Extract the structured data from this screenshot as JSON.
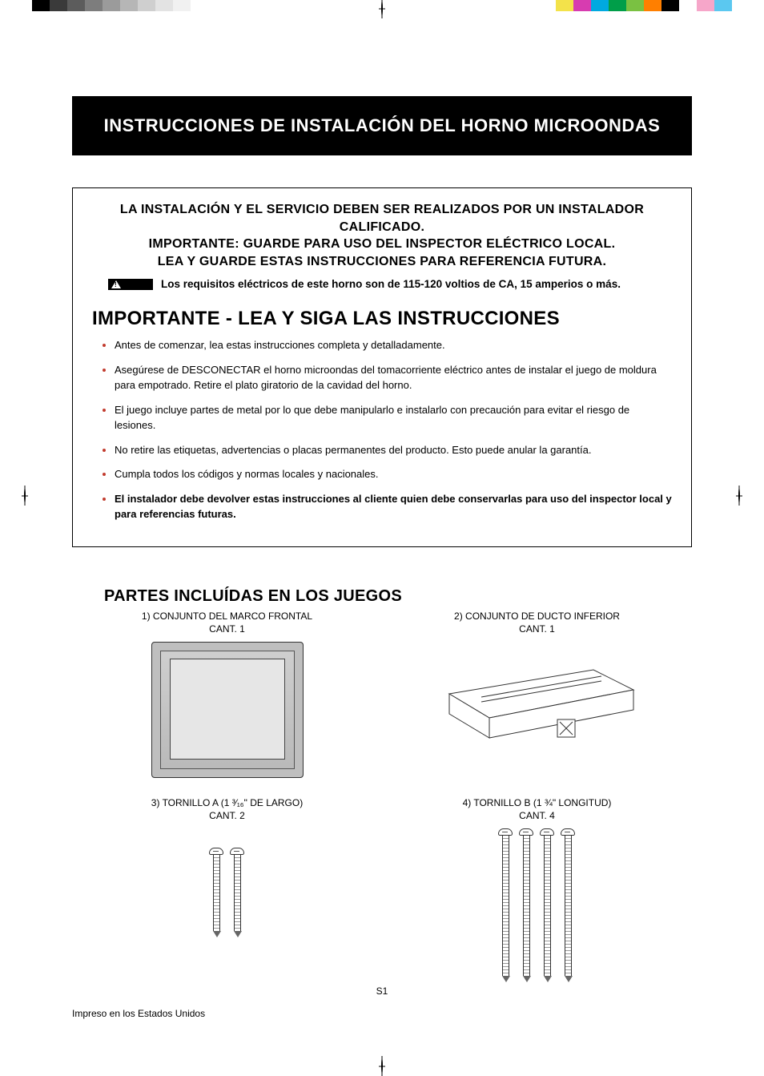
{
  "printerBar": {
    "leftColors": [
      "#000000",
      "#3a3a3a",
      "#5c5c5c",
      "#7d7d7d",
      "#9b9b9b",
      "#b6b6b6",
      "#cfcfcf",
      "#e3e3e3",
      "#f1f1f1",
      "#ffffff"
    ],
    "rightColors": [
      "#f3e24a",
      "#d73cb0",
      "#00a9e0",
      "#009e49",
      "#7ac142",
      "#ff7f00",
      "#000000",
      "#ffffff",
      "#f6a6c9",
      "#5bc8f0"
    ]
  },
  "title": "INSTRUCCIONES DE INSTALACIÓN DEL HORNO MICROONDAS",
  "notice": {
    "line1": "LA INSTALACIÓN Y EL SERVICIO DEBEN SER REALIZADOS POR UN INSTALADOR CALIFICADO.",
    "line2": "IMPORTANTE: GUARDE PARA USO DEL INSPECTOR ELÉCTRICO LOCAL.",
    "line3": "LEA Y GUARDE ESTAS INSTRUCCIONES PARA REFERENCIA FUTURA.",
    "warningText": "Los requisitos eléctricos de este horno son de 115-120 voltios de CA, 15 amperios o más."
  },
  "importantHeading": "IMPORTANTE - LEA Y SIGA LAS INSTRUCCIONES",
  "bullets": [
    "Antes de comenzar, lea estas instrucciones completa y detalladamente.",
    "Asegúrese de DESCONECTAR el horno microondas del tomacorriente eléctrico antes de instalar el juego de moldura para empotrado. Retire el plato giratorio de la cavidad del horno.",
    "El juego incluye partes de metal por lo que debe manipularlo e instalarlo con precaución para evitar el riesgo de lesiones.",
    "No retire las etiquetas, advertencias o placas permanentes del producto. Esto puede anular la garantía.",
    "Cumpla todos los códigos y normas locales y nacionales.",
    "El instalador debe devolver estas instrucciones al cliente quien debe conservarlas para uso del inspector local y para referencias futuras."
  ],
  "partsHeading": "PARTES INCLUÍDAS EN LOS JUEGOS",
  "parts": {
    "p1": {
      "title": "1) CONJUNTO DEL MARCO FRONTAL",
      "qty": "CANT. 1"
    },
    "p2": {
      "title": "2) CONJUNTO DE DUCTO INFERIOR",
      "qty": "CANT. 1"
    },
    "p3": {
      "title": "3) TORNILLO A (1 ³⁄₁₆\" DE LARGO)",
      "qty": "CANT. 2"
    },
    "p4": {
      "title": "4) TORNILLO B (1 ¾\" LONGITUD)",
      "qty": "CANT. 4"
    }
  },
  "pageNumber": "S1",
  "footer": "Impreso en los Estados Unidos",
  "style": {
    "bulletMarkerColor": "#c23b2e",
    "titleBg": "#000000",
    "titleColor": "#ffffff",
    "bodyFontSize": 13,
    "headingFontSize": 24
  }
}
